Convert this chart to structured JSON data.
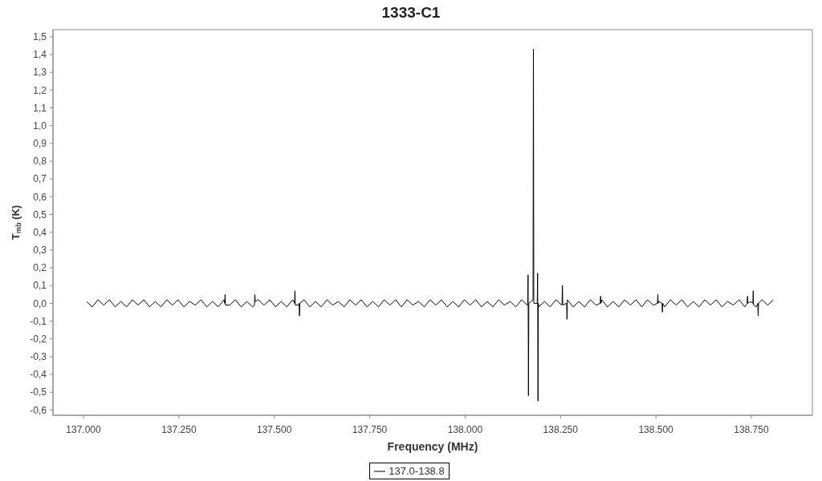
{
  "chart_data": {
    "type": "line",
    "title": "1333-C1",
    "xlabel": "Frequency (MHz)",
    "ylabel": "T$_{mb}$ (K)",
    "x": [
      137008,
      137023,
      137038,
      137053,
      137068,
      137083,
      137098,
      137113,
      137128,
      137143,
      137158,
      137173,
      137188,
      137203,
      137218,
      137233,
      137248,
      137263,
      137278,
      137293,
      137308,
      137323,
      137338,
      137353,
      137368,
      137370,
      137371,
      137372,
      137383,
      137398,
      137413,
      137428,
      137443,
      137448,
      137449,
      137450,
      137458,
      137473,
      137488,
      137503,
      137518,
      137533,
      137548,
      137553,
      137554,
      137555,
      137563,
      137565,
      137566,
      137567,
      137578,
      137593,
      137608,
      137623,
      137638,
      137653,
      137668,
      137683,
      137698,
      137713,
      137728,
      137743,
      137758,
      137773,
      137788,
      137803,
      137818,
      137833,
      137848,
      137863,
      137878,
      137893,
      137908,
      137923,
      137938,
      137953,
      137968,
      137983,
      137998,
      138013,
      138028,
      138043,
      138058,
      138073,
      138088,
      138103,
      138118,
      138133,
      138148,
      138163,
      138164,
      138165,
      138166,
      138167,
      138178,
      138179,
      138180,
      138189,
      138190,
      138191,
      138192,
      138193,
      138208,
      138223,
      138238,
      138253,
      138254,
      138255,
      138256,
      138266,
      138267,
      138268,
      138283,
      138298,
      138313,
      138328,
      138343,
      138354,
      138355,
      138356,
      138358,
      138373,
      138388,
      138403,
      138418,
      138433,
      138448,
      138463,
      138478,
      138493,
      138504,
      138505,
      138506,
      138508,
      138516,
      138517,
      138518,
      138523,
      138538,
      138553,
      138568,
      138583,
      138598,
      138613,
      138628,
      138643,
      138658,
      138673,
      138688,
      138703,
      138718,
      138733,
      138739,
      138740,
      138741,
      138748,
      138754,
      138755,
      138756,
      138763,
      138767,
      138768,
      138769,
      138778,
      138793,
      138808
    ],
    "series": [
      {
        "name": "137.0-138.8",
        "color": "#000000",
        "values": [
          0.01,
          -0.02,
          0.02,
          -0.01,
          0.02,
          -0.02,
          0.01,
          -0.02,
          0.02,
          -0.01,
          0.02,
          -0.02,
          0.01,
          -0.02,
          0.02,
          -0.01,
          0.02,
          -0.02,
          0.01,
          -0.01,
          0.02,
          -0.02,
          0.01,
          -0.02,
          0.02,
          0,
          0.05,
          -0.01,
          -0.01,
          0.02,
          -0.02,
          0.01,
          -0.02,
          -0.01,
          0.05,
          0.01,
          0.02,
          -0.01,
          0.02,
          -0.02,
          0.01,
          -0.02,
          0.02,
          0,
          0.07,
          -0.01,
          -0.01,
          0,
          -0.07,
          0,
          0.02,
          -0.02,
          0.01,
          -0.02,
          0.02,
          -0.01,
          0.01,
          -0.02,
          0.02,
          -0.01,
          0.02,
          -0.02,
          0.01,
          -0.02,
          0.02,
          -0.01,
          0.02,
          -0.02,
          0.02,
          -0.01,
          0.01,
          -0.02,
          0.02,
          -0.01,
          0.02,
          -0.02,
          0.01,
          -0.02,
          0.02,
          -0.01,
          0.02,
          -0.02,
          0.01,
          -0.02,
          0.02,
          -0.01,
          0.01,
          -0.02,
          0.02,
          -0.01,
          0,
          0.16,
          -0.52,
          0,
          0.02,
          1.43,
          0,
          0,
          0.17,
          -0.55,
          0,
          -0.02,
          0.01,
          -0.02,
          0.02,
          -0.01,
          0,
          0.1,
          -0.01,
          0,
          -0.09,
          0.02,
          -0.02,
          0.01,
          -0.02,
          0.02,
          -0.01,
          0,
          0.04,
          0,
          0.02,
          -0.02,
          0.01,
          -0.02,
          0.02,
          -0.01,
          0.02,
          -0.02,
          0.02,
          -0.01,
          0,
          0.05,
          0,
          0.01,
          0,
          -0.05,
          0,
          -0.02,
          0.02,
          -0.01,
          0.02,
          -0.02,
          0.01,
          -0.02,
          0.02,
          -0.01,
          0.02,
          -0.02,
          0.01,
          -0.01,
          0.02,
          -0.02,
          0,
          0.04,
          0,
          0.01,
          0,
          0.07,
          -0.01,
          -0.02,
          0,
          -0.07,
          0,
          0.02,
          -0.01,
          0.02
        ]
      }
    ],
    "xlim": [
      136920,
      138910
    ],
    "ylim": [
      -0.63,
      1.54
    ],
    "xticks": [
      {
        "value": 137000,
        "label": "137.000"
      },
      {
        "value": 137250,
        "label": "137.250"
      },
      {
        "value": 137500,
        "label": "137.500"
      },
      {
        "value": 137750,
        "label": "137.750"
      },
      {
        "value": 138000,
        "label": "138.000"
      },
      {
        "value": 138250,
        "label": "138.250"
      },
      {
        "value": 138500,
        "label": "138.500"
      },
      {
        "value": 138750,
        "label": "138.750"
      }
    ],
    "yticks": [
      {
        "value": -0.6,
        "label": "-0,6"
      },
      {
        "value": -0.5,
        "label": "-0,5"
      },
      {
        "value": -0.4,
        "label": "-0,4"
      },
      {
        "value": -0.3,
        "label": "-0,3"
      },
      {
        "value": -0.2,
        "label": "-0,2"
      },
      {
        "value": -0.1,
        "label": "-0,1"
      },
      {
        "value": 0,
        "label": "0,0"
      },
      {
        "value": 0.1,
        "label": "0,1"
      },
      {
        "value": 0.2,
        "label": "0,2"
      },
      {
        "value": 0.3,
        "label": "0,3"
      },
      {
        "value": 0.4,
        "label": "0,4"
      },
      {
        "value": 0.5,
        "label": "0,5"
      },
      {
        "value": 0.6,
        "label": "0,6"
      },
      {
        "value": 0.7,
        "label": "0,7"
      },
      {
        "value": 0.8,
        "label": "0,8"
      },
      {
        "value": 0.9,
        "label": "0,9"
      },
      {
        "value": 1,
        "label": "1,0"
      },
      {
        "value": 1.1,
        "label": "1,1"
      },
      {
        "value": 1.2,
        "label": "1,2"
      },
      {
        "value": 1.3,
        "label": "1,3"
      },
      {
        "value": 1.4,
        "label": "1,4"
      },
      {
        "value": 1.5,
        "label": "1,5"
      }
    ],
    "legend": "bottom",
    "marker": "none",
    "line_style": "solid"
  }
}
